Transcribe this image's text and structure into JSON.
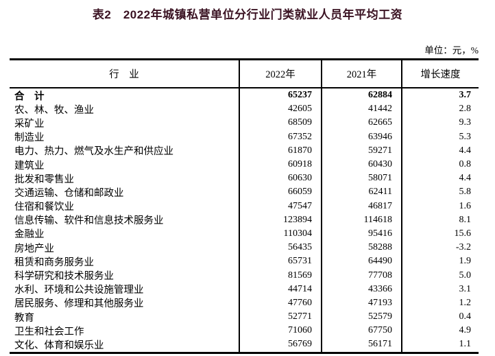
{
  "page": {
    "title": "表2　2022年城镇私营单位分行业门类就业人员年平均工资",
    "title_color": "#3a1222",
    "unit_note": "单位：元，%"
  },
  "table": {
    "columns": [
      "行　业",
      "2022年",
      "2021年",
      "增长速度"
    ],
    "rows": [
      {
        "industry": "合　计",
        "y2022": "65237",
        "y2021": "62884",
        "growth": "3.7",
        "bold": true
      },
      {
        "industry": "农、林、牧、渔业",
        "y2022": "42605",
        "y2021": "41442",
        "growth": "2.8",
        "bold": false
      },
      {
        "industry": "采矿业",
        "y2022": "68509",
        "y2021": "62665",
        "growth": "9.3",
        "bold": false
      },
      {
        "industry": "制造业",
        "y2022": "67352",
        "y2021": "63946",
        "growth": "5.3",
        "bold": false
      },
      {
        "industry": "电力、热力、燃气及水生产和供应业",
        "y2022": "61870",
        "y2021": "59271",
        "growth": "4.4",
        "bold": false
      },
      {
        "industry": "建筑业",
        "y2022": "60918",
        "y2021": "60430",
        "growth": "0.8",
        "bold": false
      },
      {
        "industry": "批发和零售业",
        "y2022": "60630",
        "y2021": "58071",
        "growth": "4.4",
        "bold": false
      },
      {
        "industry": "交通运输、仓储和邮政业",
        "y2022": "66059",
        "y2021": "62411",
        "growth": "5.8",
        "bold": false
      },
      {
        "industry": "住宿和餐饮业",
        "y2022": "47547",
        "y2021": "46817",
        "growth": "1.6",
        "bold": false
      },
      {
        "industry": "信息传输、软件和信息技术服务业",
        "y2022": "123894",
        "y2021": "114618",
        "growth": "8.1",
        "bold": false
      },
      {
        "industry": "金融业",
        "y2022": "110304",
        "y2021": "95416",
        "growth": "15.6",
        "bold": false
      },
      {
        "industry": "房地产业",
        "y2022": "56435",
        "y2021": "58288",
        "growth": "-3.2",
        "bold": false
      },
      {
        "industry": "租赁和商务服务业",
        "y2022": "65731",
        "y2021": "64490",
        "growth": "1.9",
        "bold": false
      },
      {
        "industry": "科学研究和技术服务业",
        "y2022": "81569",
        "y2021": "77708",
        "growth": "5.0",
        "bold": false
      },
      {
        "industry": "水利、环境和公共设施管理业",
        "y2022": "44714",
        "y2021": "43366",
        "growth": "3.1",
        "bold": false
      },
      {
        "industry": "居民服务、修理和其他服务业",
        "y2022": "47760",
        "y2021": "47193",
        "growth": "1.2",
        "bold": false
      },
      {
        "industry": "教育",
        "y2022": "52771",
        "y2021": "52579",
        "growth": "0.4",
        "bold": false
      },
      {
        "industry": "卫生和社会工作",
        "y2022": "71060",
        "y2021": "67750",
        "growth": "4.9",
        "bold": false
      },
      {
        "industry": "文化、体育和娱乐业",
        "y2022": "56769",
        "y2021": "56171",
        "growth": "1.1",
        "bold": false
      }
    ]
  }
}
